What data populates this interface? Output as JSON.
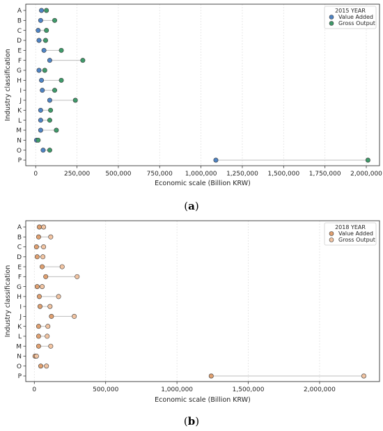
{
  "chart_data": [
    {
      "type": "dumbbell",
      "panel_label": "a",
      "legend_title": "2015 YEAR",
      "legend_position": "top-right",
      "xlabel": "Economic scale (Billion KRW)",
      "ylabel": "Industry classification",
      "xlim": [
        -60000,
        2080000
      ],
      "xticks": [
        0,
        250000,
        500000,
        750000,
        1000000,
        1250000,
        1500000,
        1750000,
        2000000
      ],
      "xtick_labels": [
        "0",
        "250,000",
        "500,000",
        "750,000",
        "1,000,000",
        "1,250,000",
        "1,500,000",
        "1,750,000",
        "2,000,000"
      ],
      "grid": "vertical",
      "categories": [
        "A",
        "B",
        "C",
        "D",
        "E",
        "F",
        "G",
        "H",
        "I",
        "J",
        "K",
        "L",
        "M",
        "N",
        "O",
        "P"
      ],
      "series": [
        {
          "name": "Value Added",
          "color": "#4f84c4",
          "values": [
            35000,
            30000,
            15000,
            20000,
            50000,
            85000,
            20000,
            35000,
            40000,
            85000,
            30000,
            30000,
            30000,
            5000,
            45000,
            1090000
          ]
        },
        {
          "name": "Gross Output",
          "color": "#3f9a6a",
          "values": [
            65000,
            115000,
            65000,
            60000,
            155000,
            285000,
            55000,
            155000,
            115000,
            240000,
            90000,
            85000,
            125000,
            15000,
            85000,
            2010000
          ]
        }
      ]
    },
    {
      "type": "dumbbell",
      "panel_label": "b",
      "legend_title": "2018 YEAR",
      "legend_position": "top-right",
      "xlabel": "Economic scale (Billion KRW)",
      "ylabel": "Industry classification",
      "xlim": [
        -60000,
        2420000
      ],
      "xticks": [
        0,
        500000,
        1000000,
        1500000,
        2000000
      ],
      "xtick_labels": [
        "0",
        "500,000",
        "1,000,000",
        "1,500,000",
        "2,000,000"
      ],
      "grid": "vertical",
      "categories": [
        "A",
        "B",
        "C",
        "D",
        "E",
        "F",
        "G",
        "H",
        "I",
        "J",
        "K",
        "L",
        "M",
        "N",
        "O",
        "P"
      ],
      "series": [
        {
          "name": "Value Added",
          "color": "#e0a070",
          "values": [
            35000,
            30000,
            15000,
            20000,
            55000,
            80000,
            20000,
            35000,
            40000,
            120000,
            30000,
            30000,
            30000,
            5000,
            45000,
            1240000
          ]
        },
        {
          "name": "Gross Output",
          "color": "#f2c4a2",
          "values": [
            65000,
            115000,
            65000,
            60000,
            195000,
            300000,
            55000,
            170000,
            110000,
            280000,
            95000,
            90000,
            115000,
            15000,
            85000,
            2310000
          ]
        }
      ]
    }
  ]
}
